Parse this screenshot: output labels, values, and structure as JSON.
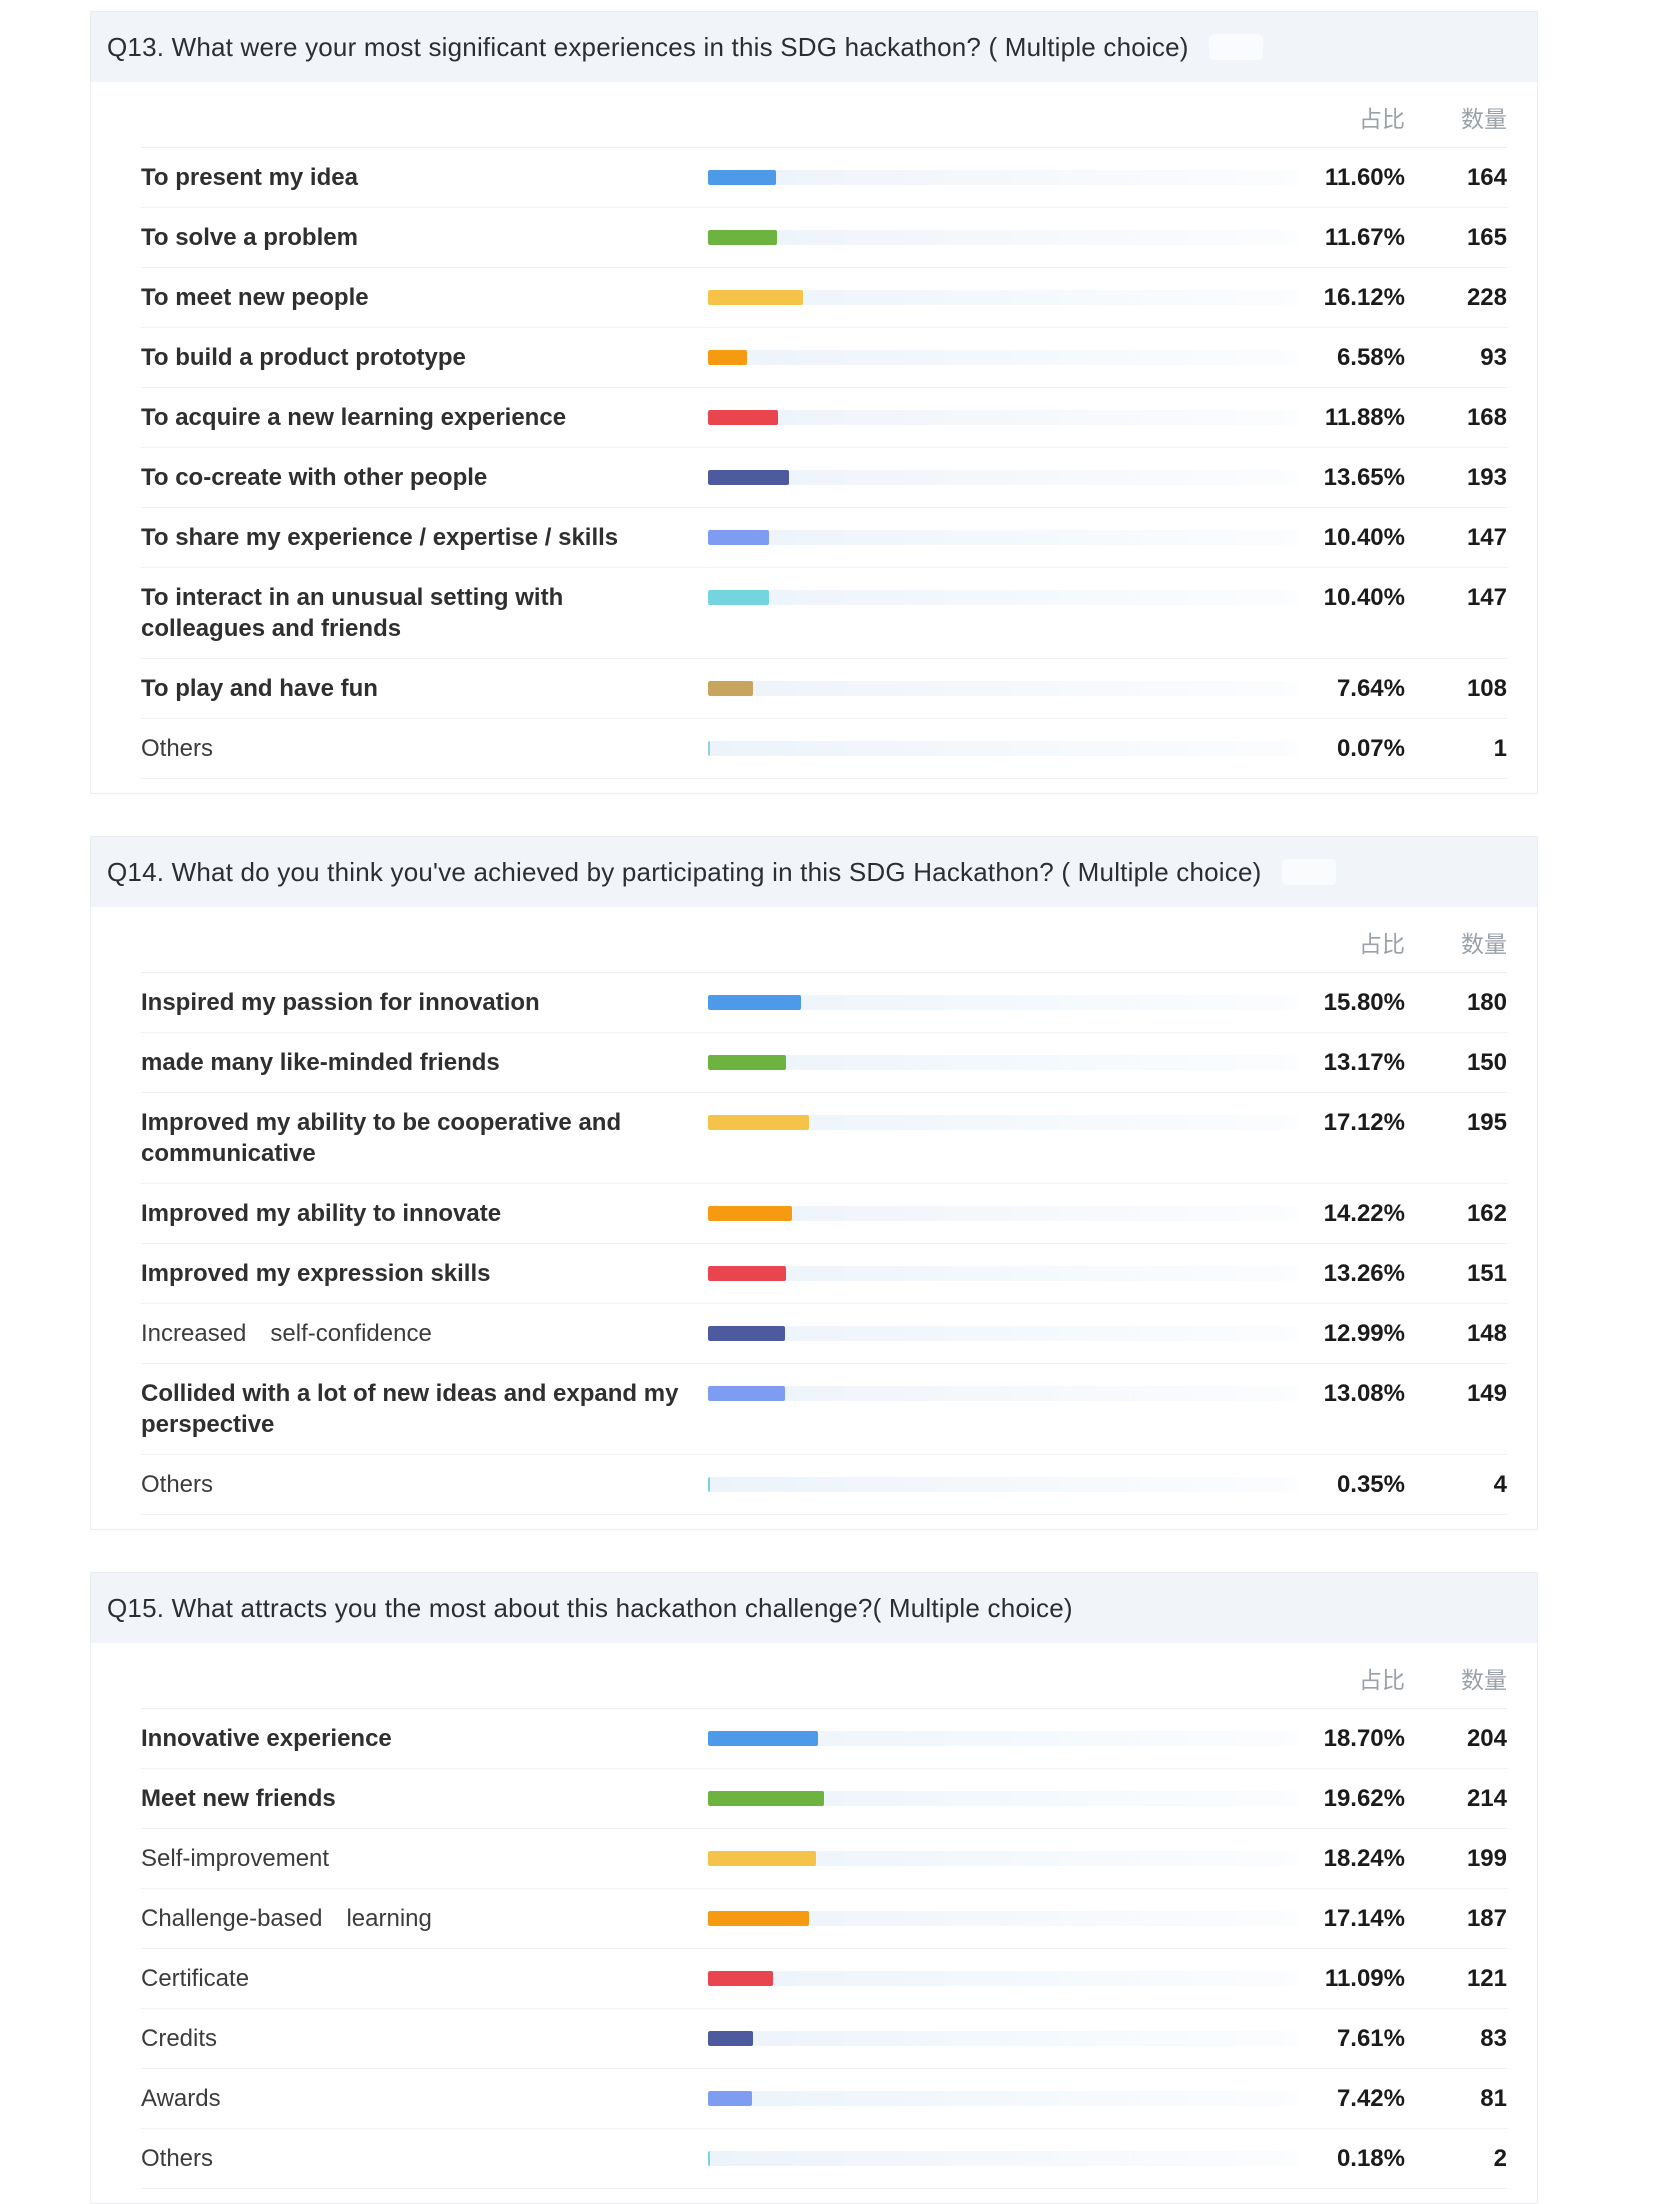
{
  "column_headers": {
    "ratio": "占比",
    "count": "数量"
  },
  "chart_data": [
    {
      "type": "bar",
      "orientation": "horizontal",
      "title": "Q13. What were your most significant experiences in this SDG hackathon? ( Multiple choice)",
      "has_watermark": true,
      "xlim": [
        0,
        100
      ],
      "value_unit": "percent",
      "rows": [
        {
          "label": "To present my idea",
          "bold": true,
          "pct": 11.6,
          "pct_label": "11.60%",
          "count": "164",
          "color": "#4d9be8"
        },
        {
          "label": "To solve a problem",
          "bold": true,
          "pct": 11.67,
          "pct_label": "11.67%",
          "count": "165",
          "color": "#6cb43f"
        },
        {
          "label": "To meet new people",
          "bold": true,
          "pct": 16.12,
          "pct_label": "16.12%",
          "count": "228",
          "color": "#f6c34a"
        },
        {
          "label": "To build a product prototype",
          "bold": true,
          "pct": 6.58,
          "pct_label": "6.58%",
          "count": "93",
          "color": "#f59a11"
        },
        {
          "label": "To acquire a new learning experience",
          "bold": true,
          "pct": 11.88,
          "pct_label": "11.88%",
          "count": "168",
          "color": "#e8454f"
        },
        {
          "label": "To co-create with other people",
          "bold": true,
          "pct": 13.65,
          "pct_label": "13.65%",
          "count": "193",
          "color": "#4d5a9e"
        },
        {
          "label": "To share my experience / expertise / skills",
          "bold": true,
          "pct": 10.4,
          "pct_label": "10.40%",
          "count": "147",
          "color": "#7e9cf2"
        },
        {
          "label": "To interact in an unusual setting with colleagues and friends",
          "bold": true,
          "pct": 10.4,
          "pct_label": "10.40%",
          "count": "147",
          "color": "#74d5de"
        },
        {
          "label": "To play and have fun",
          "bold": true,
          "pct": 7.64,
          "pct_label": "7.64%",
          "count": "108",
          "color": "#c8a55f"
        },
        {
          "label": "Others",
          "bold": false,
          "pct": 0.07,
          "pct_label": "0.07%",
          "count": "1",
          "color": "#8ed3dc"
        }
      ]
    },
    {
      "type": "bar",
      "orientation": "horizontal",
      "title": "Q14. What do you think you've achieved by participating in this SDG Hackathon? ( Multiple choice)",
      "has_watermark": true,
      "xlim": [
        0,
        100
      ],
      "value_unit": "percent",
      "rows": [
        {
          "label": "Inspired my passion for innovation",
          "bold": true,
          "pct": 15.8,
          "pct_label": "15.80%",
          "count": "180",
          "color": "#4d9be8"
        },
        {
          "label": "made many like-minded friends",
          "bold": true,
          "pct": 13.17,
          "pct_label": "13.17%",
          "count": "150",
          "color": "#6cb43f"
        },
        {
          "label": "Improved my ability to be cooperative and communicative",
          "bold": true,
          "pct": 17.12,
          "pct_label": "17.12%",
          "count": "195",
          "color": "#f6c34a"
        },
        {
          "label": "Improved my ability to innovate",
          "bold": true,
          "pct": 14.22,
          "pct_label": "14.22%",
          "count": "162",
          "color": "#f59a11"
        },
        {
          "label": "Improved my expression skills",
          "bold": true,
          "pct": 13.26,
          "pct_label": "13.26%",
          "count": "151",
          "color": "#e8454f"
        },
        {
          "label": "Increased self-confidence",
          "bold": false,
          "pct": 12.99,
          "pct_label": "12.99%",
          "count": "148",
          "color": "#4d5a9e"
        },
        {
          "label": "Collided with a lot of new ideas and expand my perspective",
          "bold": true,
          "pct": 13.08,
          "pct_label": "13.08%",
          "count": "149",
          "color": "#7e9cf2"
        },
        {
          "label": "Others",
          "bold": false,
          "pct": 0.35,
          "pct_label": "0.35%",
          "count": "4",
          "color": "#74d5de"
        }
      ]
    },
    {
      "type": "bar",
      "orientation": "horizontal",
      "title": "Q15. What attracts you the most about this hackathon challenge?( Multiple choice)",
      "has_watermark": false,
      "xlim": [
        0,
        100
      ],
      "value_unit": "percent",
      "rows": [
        {
          "label": "Innovative experience",
          "bold": true,
          "pct": 18.7,
          "pct_label": "18.70%",
          "count": "204",
          "color": "#4d9be8"
        },
        {
          "label": "Meet new friends",
          "bold": true,
          "pct": 19.62,
          "pct_label": "19.62%",
          "count": "214",
          "color": "#6cb43f"
        },
        {
          "label": "Self-improvement",
          "bold": false,
          "pct": 18.24,
          "pct_label": "18.24%",
          "count": "199",
          "color": "#f6c34a"
        },
        {
          "label": "Challenge-based learning",
          "bold": false,
          "pct": 17.14,
          "pct_label": "17.14%",
          "count": "187",
          "color": "#f59a11"
        },
        {
          "label": "Certificate",
          "bold": false,
          "pct": 11.09,
          "pct_label": "11.09%",
          "count": "121",
          "color": "#e8454f"
        },
        {
          "label": "Credits",
          "bold": false,
          "pct": 7.61,
          "pct_label": "7.61%",
          "count": "83",
          "color": "#4d5a9e"
        },
        {
          "label": "Awards",
          "bold": false,
          "pct": 7.42,
          "pct_label": "7.42%",
          "count": "81",
          "color": "#7e9cf2"
        },
        {
          "label": "Others",
          "bold": false,
          "pct": 0.18,
          "pct_label": "0.18%",
          "count": "2",
          "color": "#74d5de"
        }
      ]
    }
  ]
}
